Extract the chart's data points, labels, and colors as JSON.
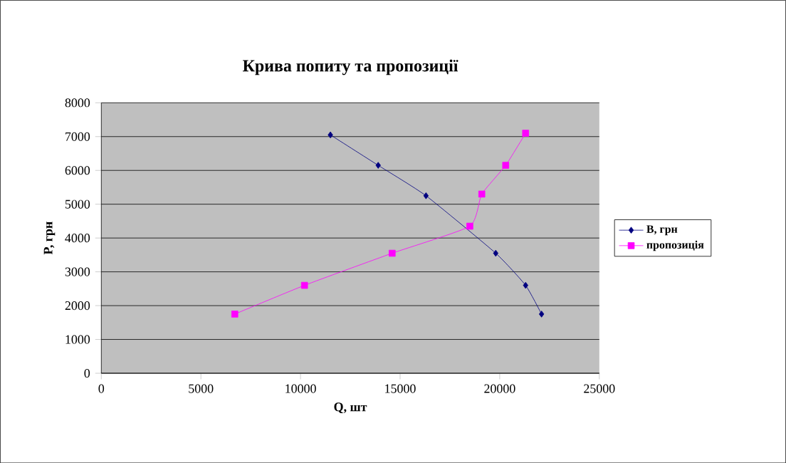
{
  "chart_data": {
    "type": "line",
    "title": "Крива попиту та пропозиції",
    "xlabel": "Q, шт",
    "ylabel": "P, грн",
    "xlim": [
      0,
      25000
    ],
    "xticks": [
      0,
      5000,
      10000,
      15000,
      20000,
      25000
    ],
    "ylim": [
      0,
      8000
    ],
    "yticks": [
      0,
      1000,
      2000,
      3000,
      4000,
      5000,
      6000,
      7000,
      8000
    ],
    "grid": "y",
    "legend": "right",
    "series": [
      {
        "name": "В, грн",
        "color": "#000080",
        "marker": "diamond",
        "x": [
          11500,
          13900,
          16300,
          19800,
          21300,
          22100
        ],
        "values": [
          7050,
          6150,
          5250,
          3550,
          2600,
          1750
        ]
      },
      {
        "name": "пропозиція",
        "color": "#ff00ff",
        "marker": "square",
        "x": [
          6700,
          10200,
          14600,
          18500,
          19100,
          20300,
          21300
        ],
        "values": [
          1750,
          2600,
          3550,
          4350,
          5300,
          6150,
          7100
        ]
      }
    ]
  }
}
